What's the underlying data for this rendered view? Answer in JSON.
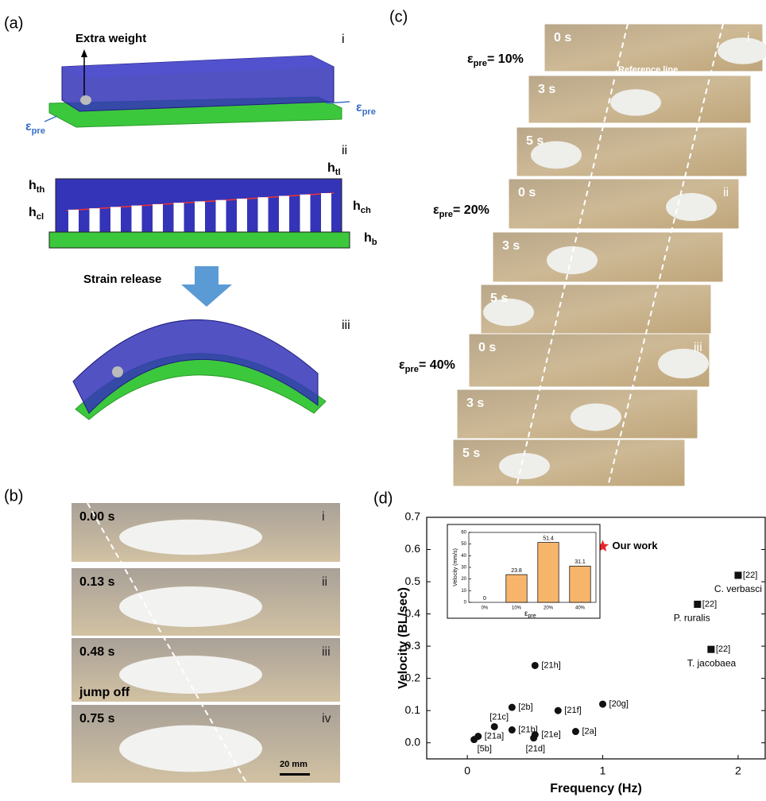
{
  "panel_labels": [
    "(a)",
    "(b)",
    "(c)",
    "(d)"
  ],
  "symbols": {
    "eps": "ε",
    "pre": "pre",
    "h": "h"
  },
  "panel_a": {
    "extra_weight": "Extra weight",
    "roman": [
      "i",
      "ii",
      "iii"
    ],
    "h_subs": [
      "th",
      "cl",
      "tl",
      "ch",
      "b"
    ],
    "strain_release": "Strain release"
  },
  "panel_b": {
    "frames": [
      {
        "time": "0.00 s",
        "roman": "i"
      },
      {
        "time": "0.13 s",
        "roman": "ii"
      },
      {
        "time": "0.48 s",
        "roman": "iii",
        "note": "jump off"
      },
      {
        "time": "0.75 s",
        "roman": "iv"
      }
    ],
    "scale_bar": "20 mm"
  },
  "panel_c": {
    "groups": [
      {
        "strain": "= 10%",
        "roman": "i",
        "times": [
          "0 s",
          "3 s",
          "5 s"
        ]
      },
      {
        "strain": "= 20%",
        "roman": "ii",
        "times": [
          "0 s",
          "3 s",
          "5 s"
        ]
      },
      {
        "strain": "= 40%",
        "roman": "iii",
        "times": [
          "0 s",
          "3 s",
          "5 s"
        ]
      }
    ],
    "reference_line": "Reference line"
  },
  "chart_data": [
    {
      "type": "scatter",
      "xlabel": "Frequency (Hz)",
      "ylabel": "Velocity (BL/sec)",
      "x": [
        0.05,
        0.08,
        0.2,
        0.33,
        0.33,
        0.5,
        0.5,
        0.49,
        0.67,
        0.8,
        1.0,
        1.0,
        2.0,
        1.7,
        1.8
      ],
      "values": [
        0.01,
        0.02,
        0.05,
        0.11,
        0.04,
        0.24,
        0.025,
        0.015,
        0.1,
        0.035,
        0.12,
        0.61,
        0.52,
        0.43,
        0.29
      ],
      "point_labels": [
        "[5b]",
        "[21a]",
        "[21c]",
        "[2b]",
        "[21b]",
        "[21h]",
        "[21e]",
        "[21d]",
        "[21f]",
        "[2a]",
        "[20g]",
        "Our work",
        "[22]",
        "[22]",
        "[22]"
      ],
      "point_notes": [
        null,
        null,
        null,
        null,
        null,
        null,
        null,
        null,
        null,
        null,
        null,
        null,
        "C. verbasci",
        "P. ruralis",
        "T. jacobaea"
      ],
      "markers": [
        "circle",
        "circle",
        "circle",
        "circle",
        "circle",
        "circle",
        "circle",
        "circle",
        "circle",
        "circle",
        "circle",
        "star",
        "square",
        "square",
        "square"
      ],
      "colors": [
        "#111111",
        "#111111",
        "#111111",
        "#111111",
        "#111111",
        "#111111",
        "#111111",
        "#111111",
        "#111111",
        "#111111",
        "#111111",
        "#e8262b",
        "#111111",
        "#111111",
        "#111111"
      ],
      "xlim": [
        -0.3,
        2.2
      ],
      "xticks": [
        0,
        1,
        2
      ],
      "ylim": [
        -0.05,
        0.7
      ],
      "yticks": [
        {
          "value": 0,
          "label": "0.0"
        },
        0.1,
        0.2,
        0.3,
        0.4,
        0.5,
        0.6,
        0.7
      ]
    },
    {
      "type": "bar",
      "ylabel": "Velocity (mm/s)",
      "categories": [
        "0%",
        "10%",
        "20%",
        "40%"
      ],
      "values": [
        0,
        23.8,
        51.4,
        31.1
      ],
      "color": "#f7b56b",
      "ylim": [
        0,
        60
      ],
      "yticks": [
        0,
        10,
        20,
        30,
        40,
        50,
        60
      ]
    }
  ]
}
